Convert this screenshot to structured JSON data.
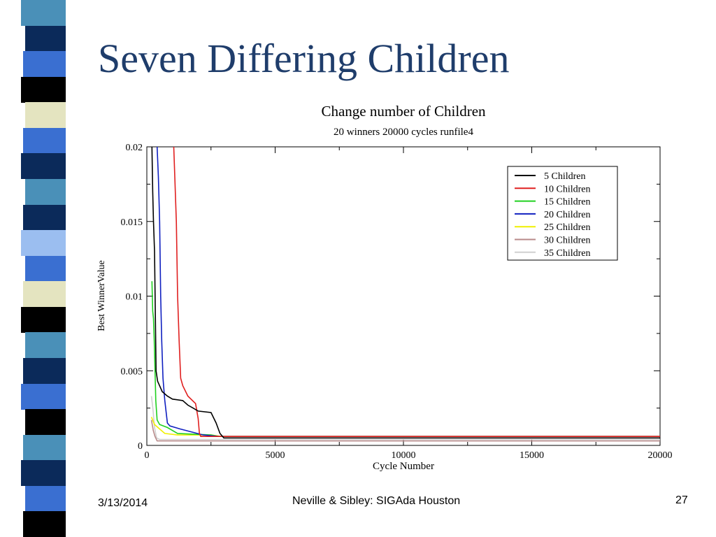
{
  "slide": {
    "title": "Seven Differing Children",
    "footer_date": "3/13/2014",
    "footer_center": "Neville & Sibley: SIGAda Houston",
    "page_number": "27",
    "stripe_colors": [
      "#4a90b8",
      "#0b2a5a",
      "#3a6fd1",
      "#000000",
      "#e4e4c0",
      "#3a6fd1",
      "#0b2a5a",
      "#4a90b8",
      "#0b2a5a",
      "#9bbef0",
      "#3a6fd1",
      "#e4e4c0",
      "#000000",
      "#4a90b8",
      "#0b2a5a",
      "#3a6fd1",
      "#000000",
      "#4a90b8",
      "#0b2a5a",
      "#3a6fd1",
      "#000000"
    ]
  },
  "chart_data": {
    "type": "line",
    "title": "Change number of Children",
    "subtitle": "20 winners 20000 cycles runfile4",
    "xlabel": "Cycle Number",
    "ylabel": "Best WinnerValue",
    "xlim": [
      0,
      20000
    ],
    "ylim": [
      0,
      0.02
    ],
    "x_ticks": [
      {
        "value": 0,
        "label": "0"
      },
      {
        "value": 5000,
        "label": "5000"
      },
      {
        "value": 10000,
        "label": "10000"
      },
      {
        "value": 15000,
        "label": "15000"
      },
      {
        "value": 20000,
        "label": "20000"
      }
    ],
    "y_ticks": [
      {
        "value": 0,
        "label": "0"
      },
      {
        "value": 0.005,
        "label": "0.005"
      },
      {
        "value": 0.01,
        "label": "0.01"
      },
      {
        "value": 0.015,
        "label": "0.015"
      },
      {
        "value": 0.02,
        "label": "0.02"
      }
    ],
    "grid": false,
    "legend_position": "top-right",
    "series": [
      {
        "name": "5 Children",
        "color": "#000000",
        "points": [
          [
            200,
            0.02
          ],
          [
            230,
            0.017
          ],
          [
            260,
            0.015
          ],
          [
            300,
            0.013
          ],
          [
            330,
            0.009
          ],
          [
            360,
            0.005
          ],
          [
            420,
            0.0043
          ],
          [
            600,
            0.0036
          ],
          [
            800,
            0.0033
          ],
          [
            1000,
            0.0031
          ],
          [
            1400,
            0.003
          ],
          [
            1600,
            0.0027
          ],
          [
            1800,
            0.0025
          ],
          [
            2000,
            0.0023
          ],
          [
            2500,
            0.0022
          ],
          [
            2700,
            0.0015
          ],
          [
            2850,
            0.0008
          ],
          [
            3000,
            0.0005
          ],
          [
            20000,
            0.0005
          ]
        ]
      },
      {
        "name": "10 Children",
        "color": "#e02020",
        "points": [
          [
            1050,
            0.02
          ],
          [
            1150,
            0.015
          ],
          [
            1200,
            0.01
          ],
          [
            1260,
            0.007
          ],
          [
            1320,
            0.0045
          ],
          [
            1400,
            0.004
          ],
          [
            1600,
            0.0033
          ],
          [
            1900,
            0.0028
          ],
          [
            2000,
            0.0018
          ],
          [
            2050,
            0.0008
          ],
          [
            2100,
            0.0006
          ],
          [
            20000,
            0.0006
          ]
        ]
      },
      {
        "name": "15 Children",
        "color": "#20d020",
        "points": [
          [
            200,
            0.011
          ],
          [
            230,
            0.009
          ],
          [
            260,
            0.0085
          ],
          [
            290,
            0.007
          ],
          [
            320,
            0.005
          ],
          [
            350,
            0.003
          ],
          [
            400,
            0.0017
          ],
          [
            500,
            0.0014
          ],
          [
            800,
            0.0012
          ],
          [
            1200,
            0.0008
          ],
          [
            2500,
            0.0007
          ],
          [
            2800,
            0.0006
          ],
          [
            20000,
            0.0006
          ]
        ]
      },
      {
        "name": "20 Children",
        "color": "#1020c0",
        "points": [
          [
            400,
            0.02
          ],
          [
            450,
            0.018
          ],
          [
            500,
            0.015
          ],
          [
            540,
            0.01
          ],
          [
            580,
            0.007
          ],
          [
            630,
            0.0045
          ],
          [
            700,
            0.003
          ],
          [
            800,
            0.0015
          ],
          [
            900,
            0.0013
          ],
          [
            1300,
            0.0011
          ],
          [
            2200,
            0.0007
          ],
          [
            2800,
            0.0006
          ],
          [
            20000,
            0.0006
          ]
        ]
      },
      {
        "name": "25 Children",
        "color": "#f0f000",
        "points": [
          [
            180,
            0.0019
          ],
          [
            300,
            0.0014
          ],
          [
            500,
            0.0011
          ],
          [
            700,
            0.0008
          ],
          [
            1200,
            0.0007
          ],
          [
            2500,
            0.0007
          ],
          [
            2900,
            0.0006
          ],
          [
            20000,
            0.0006
          ]
        ]
      },
      {
        "name": "30 Children",
        "color": "#b88a8a",
        "points": [
          [
            180,
            0.0017
          ],
          [
            250,
            0.001
          ],
          [
            320,
            0.0006
          ],
          [
            400,
            0.0003
          ],
          [
            600,
            0.0003
          ],
          [
            20000,
            0.0003
          ]
        ]
      },
      {
        "name": "35 Children",
        "color": "#d0d0d0",
        "points": [
          [
            180,
            0.0033
          ],
          [
            240,
            0.0024
          ],
          [
            300,
            0.0012
          ],
          [
            380,
            0.0005
          ],
          [
            500,
            0.0004
          ],
          [
            20000,
            0.0004
          ]
        ]
      }
    ]
  }
}
